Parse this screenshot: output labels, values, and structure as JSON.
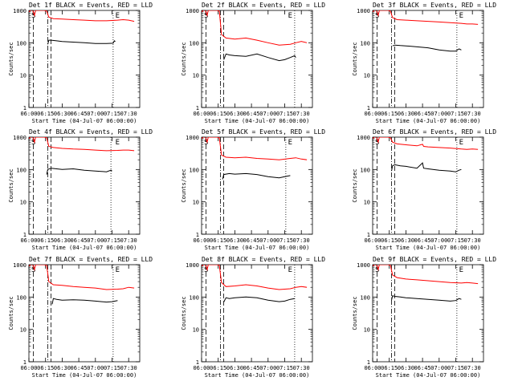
{
  "figure": {
    "xlabel": "Start Time (04-Jul-07 06:00:00)",
    "ylabel": "Counts/sec"
  },
  "chart_data": [
    {
      "type": "line",
      "title": "Det 1f BLACK = Events, RED = LLD",
      "xlabel": "Start Time (04-Jul-07 06:00:00)",
      "ylabel": "Counts/sec",
      "x_ticks": [
        "06:00",
        "06:15",
        "06:30",
        "06:45",
        "07:00",
        "07:15",
        "07:30"
      ],
      "y_ticks": [
        "1",
        "10",
        "100",
        "1000"
      ],
      "y_scale": "log",
      "ylim": [
        1,
        1000
      ],
      "xlim_minutes": [
        0,
        100
      ],
      "markers": [
        "S",
        "E"
      ],
      "series": [
        {
          "name": "LLD",
          "color": "#ff0000",
          "x": [
            0,
            3,
            5,
            6,
            8,
            14,
            16,
            18,
            22,
            30,
            40,
            50,
            60,
            70,
            80,
            85,
            90,
            95
          ],
          "values": [
            900,
            1100,
            700,
            1000,
            1000,
            1000,
            950,
            620,
            560,
            540,
            520,
            500,
            480,
            480,
            500,
            520,
            500,
            460
          ]
        },
        {
          "name": "Events",
          "color": "#000000",
          "x": [
            17,
            18,
            20,
            25,
            30,
            40,
            50,
            60,
            70,
            76,
            77,
            78
          ],
          "values": [
            90,
            120,
            120,
            115,
            110,
            105,
            100,
            95,
            95,
            97,
            115,
            110
          ]
        }
      ],
      "vlines_minutes": [
        {
          "x": 4,
          "style": "dash"
        },
        {
          "x": 17,
          "style": "dotdash"
        },
        {
          "x": 20,
          "style": "dash"
        },
        {
          "x": 76,
          "style": "dot"
        }
      ]
    },
    {
      "type": "line",
      "title": "Det 2f BLACK = Events, RED = LLD",
      "xlabel": "Start Time (04-Jul-07 06:00:00)",
      "ylabel": "Counts/sec",
      "x_ticks": [
        "06:00",
        "06:15",
        "06:30",
        "06:45",
        "07:00",
        "07:15",
        "07:30"
      ],
      "y_ticks": [
        "1",
        "10",
        "100",
        "1000"
      ],
      "y_scale": "log",
      "ylim": [
        1,
        1000
      ],
      "xlim_minutes": [
        0,
        100
      ],
      "markers": [
        "S",
        "E"
      ],
      "series": [
        {
          "name": "LLD",
          "color": "#ff0000",
          "x": [
            0,
            3,
            5,
            6,
            8,
            14,
            16,
            18,
            22,
            30,
            40,
            50,
            60,
            70,
            80,
            85,
            90,
            95
          ],
          "values": [
            900,
            1100,
            700,
            1000,
            1000,
            1000,
            950,
            180,
            140,
            130,
            140,
            120,
            100,
            85,
            90,
            100,
            110,
            100
          ]
        },
        {
          "name": "Events",
          "color": "#000000",
          "x": [
            20,
            22,
            25,
            30,
            40,
            50,
            60,
            70,
            75,
            80,
            84,
            85
          ],
          "values": [
            30,
            45,
            42,
            40,
            38,
            45,
            35,
            28,
            30,
            35,
            40,
            35
          ]
        }
      ],
      "vlines_minutes": [
        {
          "x": 4,
          "style": "dash"
        },
        {
          "x": 17,
          "style": "dotdash"
        },
        {
          "x": 20,
          "style": "dash"
        },
        {
          "x": 84,
          "style": "dot"
        }
      ]
    },
    {
      "type": "line",
      "title": "Det 3f BLACK = Events, RED = LLD",
      "xlabel": "Start Time (04-Jul-07 06:00:00)",
      "ylabel": "Counts/sec",
      "x_ticks": [
        "06:00",
        "06:15",
        "06:30",
        "06:45",
        "07:00",
        "07:15",
        "07:30"
      ],
      "y_ticks": [
        "1",
        "10",
        "100",
        "1000"
      ],
      "y_scale": "log",
      "ylim": [
        1,
        1000
      ],
      "xlim_minutes": [
        0,
        100
      ],
      "markers": [
        "S",
        "E"
      ],
      "series": [
        {
          "name": "LLD",
          "color": "#ff0000",
          "x": [
            0,
            3,
            5,
            6,
            8,
            14,
            16,
            18,
            22,
            30,
            40,
            50,
            60,
            70,
            80,
            85,
            90,
            95
          ],
          "values": [
            900,
            1100,
            700,
            1000,
            1000,
            1000,
            950,
            600,
            520,
            500,
            480,
            460,
            440,
            420,
            400,
            380,
            380,
            370
          ]
        },
        {
          "name": "Events",
          "color": "#000000",
          "x": [
            18,
            20,
            25,
            30,
            40,
            50,
            60,
            70,
            75,
            78,
            80
          ],
          "values": [
            80,
            85,
            82,
            80,
            75,
            70,
            60,
            55,
            55,
            65,
            60
          ]
        }
      ],
      "vlines_minutes": [
        {
          "x": 4,
          "style": "dash"
        },
        {
          "x": 17,
          "style": "dotdash"
        },
        {
          "x": 20,
          "style": "dash"
        },
        {
          "x": 76,
          "style": "dot"
        }
      ]
    },
    {
      "type": "line",
      "title": "Det 4f BLACK = Events, RED = LLD",
      "xlabel": "Start Time (04-Jul-07 06:00:00)",
      "ylabel": "Counts/sec",
      "x_ticks": [
        "06:00",
        "06:15",
        "06:30",
        "06:45",
        "07:00",
        "07:15",
        "07:30"
      ],
      "y_ticks": [
        "1",
        "10",
        "100",
        "1000"
      ],
      "y_scale": "log",
      "ylim": [
        1,
        1000
      ],
      "xlim_minutes": [
        0,
        100
      ],
      "markers": [
        "S",
        "E"
      ],
      "series": [
        {
          "name": "LLD",
          "color": "#ff0000",
          "x": [
            0,
            3,
            5,
            6,
            8,
            14,
            16,
            18,
            22,
            30,
            40,
            50,
            60,
            70,
            80,
            85,
            90,
            95
          ],
          "values": [
            900,
            1100,
            700,
            1000,
            1000,
            1000,
            950,
            520,
            480,
            450,
            430,
            420,
            400,
            380,
            390,
            400,
            400,
            380
          ]
        },
        {
          "name": "Events",
          "color": "#000000",
          "x": [
            16,
            17,
            20,
            25,
            30,
            40,
            50,
            60,
            70,
            74,
            75
          ],
          "values": [
            70,
            100,
            110,
            105,
            100,
            105,
            95,
            90,
            85,
            95,
            90
          ]
        }
      ],
      "vlines_minutes": [
        {
          "x": 4,
          "style": "dash"
        },
        {
          "x": 17,
          "style": "dotdash"
        },
        {
          "x": 20,
          "style": "dash"
        },
        {
          "x": 74,
          "style": "dot"
        }
      ]
    },
    {
      "type": "line",
      "title": "Det 5f BLACK = Events, RED = LLD",
      "xlabel": "Start Time (04-Jul-07 06:00:00)",
      "ylabel": "Counts/sec",
      "x_ticks": [
        "06:00",
        "06:15",
        "06:30",
        "06:45",
        "07:00",
        "07:15",
        "07:30"
      ],
      "y_ticks": [
        "1",
        "10",
        "100",
        "1000"
      ],
      "y_scale": "log",
      "ylim": [
        1,
        1000
      ],
      "xlim_minutes": [
        0,
        100
      ],
      "markers": [
        "S",
        "E"
      ],
      "series": [
        {
          "name": "LLD",
          "color": "#ff0000",
          "x": [
            0,
            3,
            5,
            6,
            8,
            14,
            16,
            18,
            22,
            30,
            40,
            50,
            60,
            70,
            80,
            85,
            90,
            95
          ],
          "values": [
            900,
            1100,
            700,
            1000,
            1000,
            1000,
            950,
            280,
            240,
            230,
            240,
            220,
            210,
            200,
            220,
            230,
            210,
            200
          ]
        },
        {
          "name": "Events",
          "color": "#000000",
          "x": [
            19,
            20,
            25,
            30,
            40,
            50,
            60,
            70,
            75,
            80
          ],
          "values": [
            50,
            70,
            75,
            72,
            75,
            70,
            60,
            55,
            60,
            65
          ]
        }
      ],
      "vlines_minutes": [
        {
          "x": 4,
          "style": "dash"
        },
        {
          "x": 17,
          "style": "dotdash"
        },
        {
          "x": 20,
          "style": "dash"
        },
        {
          "x": 76,
          "style": "dot"
        }
      ]
    },
    {
      "type": "line",
      "title": "Det 6f BLACK = Events, RED = LLD",
      "xlabel": "Start Time (04-Jul-07 06:00:00)",
      "ylabel": "Counts/sec",
      "x_ticks": [
        "06:00",
        "06:15",
        "06:30",
        "06:45",
        "07:00",
        "07:15",
        "07:30"
      ],
      "y_ticks": [
        "1",
        "10",
        "100",
        "1000"
      ],
      "y_scale": "log",
      "ylim": [
        1,
        1000
      ],
      "xlim_minutes": [
        0,
        100
      ],
      "markers": [
        "S",
        "E"
      ],
      "series": [
        {
          "name": "LLD",
          "color": "#ff0000",
          "x": [
            0,
            3,
            5,
            6,
            8,
            14,
            16,
            18,
            22,
            30,
            40,
            45,
            46,
            50,
            60,
            70,
            80,
            85,
            90,
            95
          ],
          "values": [
            900,
            1100,
            700,
            1000,
            1000,
            1000,
            950,
            700,
            620,
            580,
            540,
            600,
            520,
            500,
            480,
            460,
            430,
            420,
            430,
            420
          ]
        },
        {
          "name": "Events",
          "color": "#000000",
          "x": [
            17,
            18,
            20,
            25,
            30,
            40,
            45,
            46,
            50,
            60,
            70,
            75,
            78,
            80
          ],
          "values": [
            90,
            130,
            140,
            130,
            125,
            110,
            160,
            110,
            105,
            95,
            90,
            85,
            95,
            100
          ]
        }
      ],
      "vlines_minutes": [
        {
          "x": 4,
          "style": "dash"
        },
        {
          "x": 17,
          "style": "dotdash"
        },
        {
          "x": 20,
          "style": "dash"
        },
        {
          "x": 76,
          "style": "dot"
        }
      ]
    },
    {
      "type": "line",
      "title": "Det 7f BLACK = Events, RED = LLD",
      "xlabel": "Start Time (04-Jul-07 06:00:00)",
      "ylabel": "Counts/sec",
      "x_ticks": [
        "06:00",
        "06:15",
        "06:30",
        "06:45",
        "07:00",
        "07:15",
        "07:30"
      ],
      "y_ticks": [
        "1",
        "10",
        "100",
        "1000"
      ],
      "y_scale": "log",
      "ylim": [
        1,
        1000
      ],
      "xlim_minutes": [
        0,
        100
      ],
      "markers": [
        "S",
        "E"
      ],
      "series": [
        {
          "name": "LLD",
          "color": "#ff0000",
          "x": [
            0,
            3,
            5,
            6,
            8,
            14,
            16,
            18,
            22,
            30,
            40,
            50,
            60,
            70,
            80,
            85,
            90,
            95
          ],
          "values": [
            900,
            1100,
            700,
            1000,
            1000,
            1000,
            950,
            300,
            240,
            230,
            210,
            200,
            190,
            170,
            175,
            180,
            200,
            190
          ]
        },
        {
          "name": "Events",
          "color": "#000000",
          "x": [
            21,
            22,
            25,
            30,
            40,
            50,
            60,
            70,
            75,
            80
          ],
          "values": [
            60,
            90,
            85,
            80,
            82,
            80,
            75,
            70,
            72,
            78
          ]
        }
      ],
      "vlines_minutes": [
        {
          "x": 4,
          "style": "dash"
        },
        {
          "x": 17,
          "style": "dotdash"
        },
        {
          "x": 20,
          "style": "dash"
        },
        {
          "x": 76,
          "style": "dot"
        }
      ]
    },
    {
      "type": "line",
      "title": "Det 8f BLACK = Events, RED = LLD",
      "xlabel": "Start Time (04-Jul-07 06:00:00)",
      "ylabel": "Counts/sec",
      "x_ticks": [
        "06:00",
        "06:15",
        "06:30",
        "06:45",
        "07:00",
        "07:15",
        "07:30"
      ],
      "y_ticks": [
        "1",
        "10",
        "100",
        "1000"
      ],
      "y_scale": "log",
      "ylim": [
        1,
        1000
      ],
      "xlim_minutes": [
        0,
        100
      ],
      "markers": [
        "S",
        "E"
      ],
      "series": [
        {
          "name": "LLD",
          "color": "#ff0000",
          "x": [
            0,
            3,
            5,
            6,
            8,
            14,
            16,
            18,
            22,
            30,
            40,
            50,
            60,
            70,
            80,
            85,
            90,
            95
          ],
          "values": [
            900,
            1100,
            700,
            1000,
            1000,
            1000,
            950,
            280,
            210,
            220,
            240,
            220,
            190,
            170,
            180,
            200,
            210,
            200
          ]
        },
        {
          "name": "Events",
          "color": "#000000",
          "x": [
            20,
            22,
            25,
            30,
            40,
            50,
            60,
            70,
            75,
            80,
            84
          ],
          "values": [
            70,
            95,
            90,
            95,
            100,
            95,
            80,
            72,
            75,
            85,
            90
          ]
        }
      ],
      "vlines_minutes": [
        {
          "x": 4,
          "style": "dash"
        },
        {
          "x": 17,
          "style": "dotdash"
        },
        {
          "x": 20,
          "style": "dash"
        },
        {
          "x": 84,
          "style": "dot"
        }
      ]
    },
    {
      "type": "line",
      "title": "Det 9f BLACK = Events, RED = LLD",
      "xlabel": "Start Time (04-Jul-07 06:00:00)",
      "ylabel": "Counts/sec",
      "x_ticks": [
        "06:00",
        "06:15",
        "06:30",
        "06:45",
        "07:00",
        "07:15",
        "07:30"
      ],
      "y_ticks": [
        "1",
        "10",
        "100",
        "1000"
      ],
      "y_scale": "log",
      "ylim": [
        1,
        1000
      ],
      "xlim_minutes": [
        0,
        100
      ],
      "markers": [
        "S",
        "E"
      ],
      "series": [
        {
          "name": "LLD",
          "color": "#ff0000",
          "x": [
            0,
            3,
            5,
            6,
            8,
            14,
            16,
            18,
            22,
            30,
            40,
            50,
            60,
            70,
            80,
            85,
            90,
            95
          ],
          "values": [
            900,
            1100,
            700,
            1000,
            1000,
            1000,
            950,
            480,
            400,
            360,
            340,
            320,
            300,
            280,
            270,
            280,
            270,
            260
          ]
        },
        {
          "name": "Events",
          "color": "#000000",
          "x": [
            17,
            18,
            20,
            25,
            30,
            40,
            50,
            60,
            70,
            75,
            78,
            80
          ],
          "values": [
            80,
            110,
            105,
            100,
            95,
            90,
            85,
            80,
            75,
            78,
            90,
            85
          ]
        }
      ],
      "vlines_minutes": [
        {
          "x": 4,
          "style": "dash"
        },
        {
          "x": 17,
          "style": "dotdash"
        },
        {
          "x": 20,
          "style": "dash"
        },
        {
          "x": 76,
          "style": "dot"
        }
      ]
    }
  ]
}
